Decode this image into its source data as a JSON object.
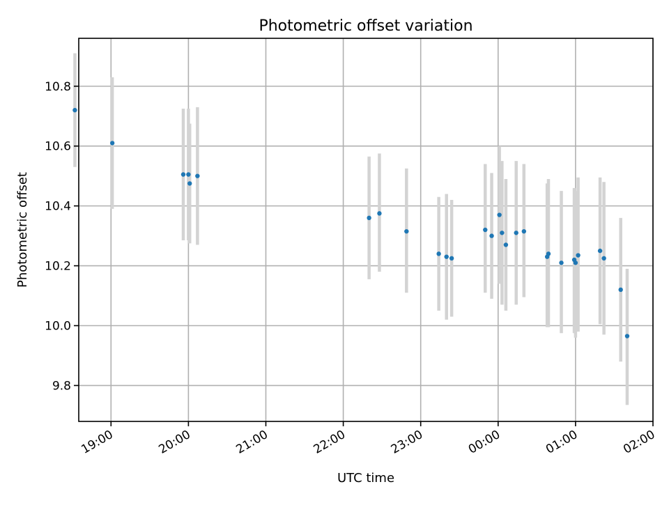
{
  "chart_data": {
    "type": "scatter",
    "title": "Photometric offset variation",
    "xlabel": "UTC time",
    "ylabel": "Photometric offset",
    "x_axis_kind": "time",
    "x_range": [
      "18:35",
      "02:00"
    ],
    "ylim": [
      9.68,
      10.96
    ],
    "x_ticks": [
      {
        "time": "19:00",
        "label": "19:00"
      },
      {
        "time": "20:00",
        "label": "20:00"
      },
      {
        "time": "21:00",
        "label": "21:00"
      },
      {
        "time": "22:00",
        "label": "22:00"
      },
      {
        "time": "23:00",
        "label": "23:00"
      },
      {
        "time": "00:00",
        "label": "00:00"
      },
      {
        "time": "01:00",
        "label": "01:00"
      },
      {
        "time": "02:00",
        "label": "02:00"
      }
    ],
    "y_ticks": [
      {
        "value": 9.8,
        "label": "9.8"
      },
      {
        "value": 10.0,
        "label": "10.0"
      },
      {
        "value": 10.2,
        "label": "10.2"
      },
      {
        "value": 10.4,
        "label": "10.4"
      },
      {
        "value": 10.6,
        "label": "10.6"
      },
      {
        "value": 10.8,
        "label": "10.8"
      }
    ],
    "grid": true,
    "marker_color": "#1f77b4",
    "errorbar_color": "#d3d3d3",
    "points": [
      {
        "time": "18:32",
        "y": 10.72,
        "lo": 10.53,
        "hi": 10.91
      },
      {
        "time": "19:01",
        "y": 10.61,
        "lo": 10.39,
        "hi": 10.83
      },
      {
        "time": "19:56",
        "y": 10.505,
        "lo": 10.285,
        "hi": 10.725
      },
      {
        "time": "20:00",
        "y": 10.505,
        "lo": 10.285,
        "hi": 10.725
      },
      {
        "time": "20:01",
        "y": 10.475,
        "lo": 10.275,
        "hi": 10.675
      },
      {
        "time": "20:07",
        "y": 10.5,
        "lo": 10.27,
        "hi": 10.73
      },
      {
        "time": "22:20",
        "y": 10.36,
        "lo": 10.155,
        "hi": 10.565
      },
      {
        "time": "22:28",
        "y": 10.375,
        "lo": 10.18,
        "hi": 10.575
      },
      {
        "time": "22:49",
        "y": 10.315,
        "lo": 10.11,
        "hi": 10.525
      },
      {
        "time": "23:14",
        "y": 10.24,
        "lo": 10.05,
        "hi": 10.43
      },
      {
        "time": "23:20",
        "y": 10.23,
        "lo": 10.02,
        "hi": 10.44
      },
      {
        "time": "23:24",
        "y": 10.225,
        "lo": 10.03,
        "hi": 10.42
      },
      {
        "time": "23:50",
        "y": 10.32,
        "lo": 10.11,
        "hi": 10.54
      },
      {
        "time": "23:55",
        "y": 10.3,
        "lo": 10.09,
        "hi": 10.51
      },
      {
        "time": "00:01",
        "y": 10.37,
        "lo": 10.14,
        "hi": 10.6
      },
      {
        "time": "00:03",
        "y": 10.31,
        "lo": 10.07,
        "hi": 10.55
      },
      {
        "time": "00:06",
        "y": 10.27,
        "lo": 10.05,
        "hi": 10.49
      },
      {
        "time": "00:14",
        "y": 10.31,
        "lo": 10.07,
        "hi": 10.55
      },
      {
        "time": "00:20",
        "y": 10.315,
        "lo": 10.095,
        "hi": 10.54
      },
      {
        "time": "00:38",
        "y": 10.23,
        "lo": 9.995,
        "hi": 10.475
      },
      {
        "time": "00:39",
        "y": 10.24,
        "lo": 9.995,
        "hi": 10.49
      },
      {
        "time": "00:49",
        "y": 10.21,
        "lo": 9.975,
        "hi": 10.45
      },
      {
        "time": "00:59",
        "y": 10.22,
        "lo": 9.975,
        "hi": 10.46
      },
      {
        "time": "01:00",
        "y": 10.21,
        "lo": 9.96,
        "hi": 10.45
      },
      {
        "time": "01:02",
        "y": 10.235,
        "lo": 9.98,
        "hi": 10.495
      },
      {
        "time": "01:19",
        "y": 10.25,
        "lo": 10.005,
        "hi": 10.495
      },
      {
        "time": "01:22",
        "y": 10.225,
        "lo": 9.97,
        "hi": 10.48
      },
      {
        "time": "01:35",
        "y": 10.12,
        "lo": 9.88,
        "hi": 10.36
      },
      {
        "time": "01:40",
        "y": 9.965,
        "lo": 9.735,
        "hi": 10.19
      }
    ]
  }
}
